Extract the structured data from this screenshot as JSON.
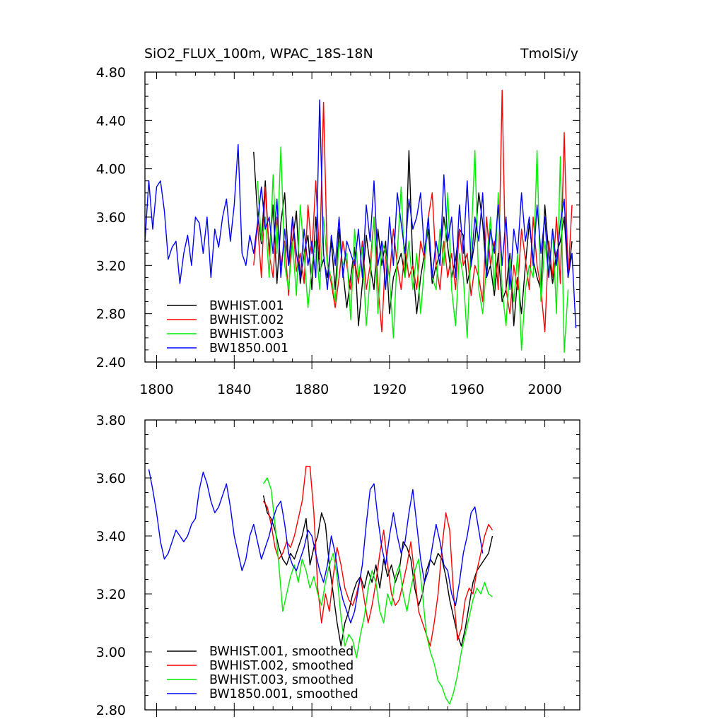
{
  "chart_data": [
    {
      "type": "line",
      "title": "SiO2_FLUX_100m, WPAC_18S-18N",
      "units_label": "TmolSi/y",
      "xlim": [
        1794,
        2018
      ],
      "ylim": [
        2.4,
        4.8
      ],
      "x_ticks": [
        1800,
        1840,
        1880,
        1920,
        1960,
        2000
      ],
      "y_ticks": [
        2.4,
        2.8,
        3.2,
        3.6,
        4.0,
        4.4,
        4.8
      ],
      "y_tick_labels": [
        "2.40",
        "2.80",
        "3.20",
        "3.60",
        "4.00",
        "4.40",
        "4.80"
      ],
      "grid": false,
      "legend_position": "bottom-left",
      "legend": [
        "BWHIST.001",
        "BWHIST.002",
        "BWHIST.003",
        "BW1850.001"
      ],
      "series": [
        {
          "name": "BWHIST.001",
          "color": "#000000",
          "x_start": 1850,
          "x_step": 2,
          "values": [
            4.14,
            3.62,
            3.38,
            3.9,
            3.3,
            3.7,
            3.05,
            3.55,
            3.8,
            3.2,
            3.4,
            3.65,
            3.05,
            3.3,
            3.45,
            3.0,
            3.6,
            3.15,
            3.25,
            3.1,
            3.4,
            3.0,
            3.5,
            3.15,
            2.85,
            3.1,
            3.35,
            2.7,
            3.05,
            3.45,
            3.2,
            3.0,
            3.5,
            3.2,
            3.4,
            2.8,
            3.1,
            3.2,
            3.3,
            3.1,
            4.15,
            3.2,
            2.8,
            3.1,
            3.3,
            3.5,
            3.05,
            3.2,
            3.3,
            3.6,
            3.35,
            3.1,
            3.25,
            3.5,
            3.45,
            3.05,
            3.2,
            3.4,
            3.8,
            3.55,
            3.1,
            3.2,
            2.95,
            3.3,
            2.9,
            3.0,
            3.3,
            2.7,
            3.1,
            2.8,
            3.2,
            3.55,
            3.25,
            3.1,
            3.0,
            3.7,
            3.3,
            3.05,
            3.3,
            3.4,
            3.6,
            3.1,
            3.4
          ]
        },
        {
          "name": "BWHIST.002",
          "color": "#ff0000",
          "x_start": 1850,
          "x_step": 2,
          "values": [
            3.2,
            3.55,
            3.1,
            3.85,
            3.3,
            3.1,
            3.6,
            3.2,
            3.4,
            2.95,
            3.6,
            3.15,
            3.3,
            3.05,
            3.7,
            3.3,
            3.9,
            3.25,
            4.55,
            3.2,
            3.05,
            2.85,
            3.1,
            3.4,
            3.2,
            3.0,
            3.25,
            3.05,
            3.4,
            3.0,
            3.2,
            3.6,
            3.05,
            2.65,
            3.3,
            3.1,
            3.5,
            3.2,
            3.0,
            3.35,
            3.1,
            3.2,
            3.0,
            3.4,
            3.25,
            3.6,
            3.8,
            3.2,
            3.0,
            3.4,
            3.1,
            3.3,
            3.0,
            3.5,
            3.2,
            3.3,
            2.95,
            3.2,
            3.1,
            2.9,
            3.6,
            3.2,
            3.4,
            3.0,
            4.65,
            3.0,
            2.8,
            3.2,
            3.0,
            3.5,
            3.25,
            3.0,
            3.6,
            3.2,
            3.0,
            2.65,
            3.4,
            3.1,
            3.6,
            3.05,
            4.3,
            3.1,
            3.7
          ]
        },
        {
          "name": "BWHIST.003",
          "color": "#00ee00",
          "x_start": 1852,
          "x_step": 2,
          "values": [
            3.9,
            3.4,
            3.6,
            3.1,
            3.95,
            3.3,
            4.18,
            3.2,
            3.0,
            3.4,
            2.95,
            3.7,
            3.3,
            2.85,
            3.2,
            3.4,
            3.0,
            3.6,
            3.2,
            3.1,
            2.9,
            3.4,
            3.2,
            3.3,
            2.75,
            3.5,
            3.1,
            3.35,
            2.7,
            3.1,
            3.6,
            2.8,
            3.4,
            3.3,
            3.1,
            2.6,
            3.3,
            3.85,
            3.1,
            3.4,
            3.0,
            3.3,
            2.8,
            3.2,
            3.6,
            3.1,
            3.0,
            3.5,
            3.2,
            3.8,
            3.0,
            2.7,
            3.3,
            3.1,
            2.6,
            3.4,
            4.15,
            3.0,
            2.8,
            3.2,
            3.6,
            3.0,
            3.8,
            3.0,
            2.7,
            3.25,
            2.9,
            3.3,
            2.5,
            3.0,
            3.2,
            3.1,
            4.15,
            2.9,
            3.4,
            3.1,
            3.5,
            2.8,
            4.1,
            2.48,
            3.0
          ]
        },
        {
          "name": "BW1850.001",
          "color": "#0000ff",
          "x_start": 1794,
          "x_step": 2,
          "values": [
            3.4,
            3.9,
            3.5,
            3.85,
            3.9,
            3.65,
            3.25,
            3.35,
            3.4,
            3.05,
            3.3,
            3.45,
            3.2,
            3.6,
            3.55,
            3.3,
            3.6,
            3.1,
            3.5,
            3.35,
            3.6,
            3.75,
            3.4,
            3.7,
            4.2,
            3.3,
            3.2,
            3.45,
            3.3,
            3.55,
            3.85,
            3.5,
            3.6,
            3.3,
            3.75,
            3.1,
            3.5,
            3.2,
            3.6,
            3.3,
            3.1,
            3.5,
            3.2,
            3.4,
            3.1,
            4.57,
            3.3,
            3.0,
            3.45,
            3.2,
            3.6,
            3.1,
            3.4,
            3.3,
            3.2,
            3.5,
            3.1,
            3.7,
            3.4,
            3.9,
            3.2,
            3.4,
            3.0,
            3.6,
            3.2,
            3.8,
            3.55,
            3.3,
            3.75,
            3.5,
            3.6,
            3.8,
            3.3,
            3.6,
            3.1,
            3.4,
            3.2,
            3.95,
            3.4,
            3.6,
            3.1,
            3.7,
            3.3,
            3.9,
            3.2,
            3.6,
            3.4,
            3.8,
            3.1,
            3.5,
            3.3,
            3.7,
            3.2,
            3.6,
            3.0,
            3.5,
            3.3,
            3.8,
            3.4,
            3.6,
            3.2,
            3.7,
            3.3,
            3.6,
            3.1,
            3.5,
            3.2,
            3.55,
            3.75,
            3.1,
            3.3,
            2.68
          ]
        }
      ]
    },
    {
      "type": "line",
      "title": "",
      "xlim": [
        1794,
        2018
      ],
      "ylim": [
        2.8,
        3.8
      ],
      "x_ticks": [
        1800,
        1840,
        1880,
        1920,
        1960,
        2000
      ],
      "y_ticks": [
        2.8,
        3.0,
        3.2,
        3.4,
        3.6,
        3.8
      ],
      "y_tick_labels": [
        "2.80",
        "3.00",
        "3.20",
        "3.40",
        "3.60",
        "3.80"
      ],
      "grid": false,
      "legend_position": "bottom-left",
      "legend": [
        "BWHIST.001, smoothed",
        "BWHIST.002, smoothed",
        "BWHIST.003, smoothed",
        "BW1850.001, smoothed"
      ],
      "series": [
        {
          "name": "BWHIST.001, smoothed",
          "color": "#000000",
          "x_start": 1855,
          "x_step": 2,
          "values": [
            3.54,
            3.48,
            3.46,
            3.42,
            3.36,
            3.32,
            3.3,
            3.34,
            3.32,
            3.36,
            3.4,
            3.46,
            3.3,
            3.36,
            3.4,
            3.48,
            3.44,
            3.3,
            3.2,
            3.1,
            3.02,
            3.1,
            3.14,
            3.2,
            3.24,
            3.26,
            3.22,
            3.28,
            3.24,
            3.3,
            3.22,
            3.32,
            3.26,
            3.3,
            3.24,
            3.28,
            3.38,
            3.36,
            3.32,
            3.22,
            3.16,
            3.2,
            3.28,
            3.32,
            3.3,
            3.34,
            3.32,
            3.26,
            3.18,
            3.12,
            3.06,
            3.02,
            3.08,
            3.16,
            3.24,
            3.28,
            3.3,
            3.32,
            3.34,
            3.4
          ]
        },
        {
          "name": "BWHIST.002, smoothed",
          "color": "#ff0000",
          "x_start": 1855,
          "x_step": 2,
          "values": [
            3.52,
            3.5,
            3.44,
            3.36,
            3.32,
            3.34,
            3.38,
            3.36,
            3.4,
            3.46,
            3.52,
            3.64,
            3.64,
            3.48,
            3.22,
            3.1,
            3.2,
            3.14,
            3.26,
            3.36,
            3.3,
            3.22,
            3.18,
            3.16,
            3.2,
            3.26,
            3.18,
            3.1,
            3.16,
            3.24,
            3.34,
            3.42,
            3.3,
            3.2,
            3.16,
            3.18,
            3.24,
            3.3,
            3.38,
            3.26,
            3.14,
            3.1,
            3.06,
            3.02,
            3.1,
            3.2,
            3.36,
            3.48,
            3.42,
            3.2,
            3.04,
            3.08,
            3.18,
            3.22,
            3.2,
            3.28,
            3.34,
            3.4,
            3.44,
            3.42
          ]
        },
        {
          "name": "BWHIST.003, smoothed",
          "color": "#00ee00",
          "x_start": 1855,
          "x_step": 2,
          "values": [
            3.58,
            3.6,
            3.56,
            3.44,
            3.3,
            3.14,
            3.2,
            3.26,
            3.3,
            3.24,
            3.32,
            3.28,
            3.22,
            3.26,
            3.2,
            3.16,
            3.24,
            3.3,
            3.34,
            3.26,
            3.12,
            3.02,
            3.06,
            3.04,
            2.98,
            3.06,
            3.12,
            3.22,
            3.28,
            3.24,
            3.14,
            3.1,
            3.2,
            3.16,
            3.26,
            3.3,
            3.2,
            3.14,
            3.22,
            3.28,
            3.32,
            3.2,
            3.06,
            3.0,
            2.96,
            2.9,
            2.88,
            2.84,
            2.82,
            2.86,
            2.92,
            3.0,
            3.06,
            3.12,
            3.18,
            3.22,
            3.2,
            3.24,
            3.2,
            3.19
          ]
        },
        {
          "name": "BW1850.001, smoothed",
          "color": "#0000ff",
          "x_start": 1796,
          "x_step": 2,
          "values": [
            3.63,
            3.56,
            3.48,
            3.38,
            3.32,
            3.34,
            3.38,
            3.42,
            3.4,
            3.38,
            3.4,
            3.44,
            3.46,
            3.56,
            3.62,
            3.58,
            3.52,
            3.48,
            3.5,
            3.54,
            3.58,
            3.5,
            3.4,
            3.34,
            3.28,
            3.32,
            3.4,
            3.44,
            3.38,
            3.32,
            3.36,
            3.4,
            3.46,
            3.5,
            3.52,
            3.44,
            3.34,
            3.3,
            3.28,
            3.32,
            3.36,
            3.42,
            3.4,
            3.34,
            3.28,
            3.24,
            3.3,
            3.4,
            3.34,
            3.24,
            3.18,
            3.14,
            3.1,
            3.14,
            3.22,
            3.3,
            3.44,
            3.56,
            3.58,
            3.46,
            3.36,
            3.3,
            3.4,
            3.48,
            3.4,
            3.34,
            3.38,
            3.48,
            3.56,
            3.44,
            3.32,
            3.24,
            3.28,
            3.36,
            3.44,
            3.38,
            3.3,
            3.28,
            3.2,
            3.16,
            3.24,
            3.34,
            3.4,
            3.48,
            3.5,
            3.42,
            3.34
          ]
        }
      ]
    }
  ]
}
